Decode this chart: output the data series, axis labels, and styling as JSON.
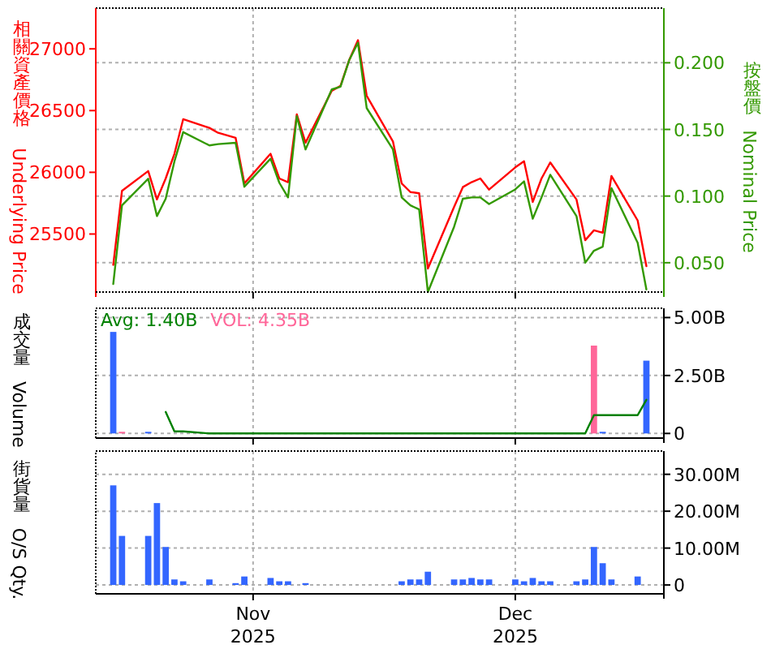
{
  "chart_data": [
    {
      "type": "line",
      "ylabel": "相關資產價格 Underlying Price",
      "y2label": "按盤價Nominal Price",
      "x": [
        "2025-10-16",
        "2025-10-17",
        "2025-10-20",
        "2025-10-21",
        "2025-10-22",
        "2025-10-23",
        "2025-10-24",
        "2025-10-27",
        "2025-10-28",
        "2025-10-30",
        "2025-10-31",
        "2025-11-03",
        "2025-11-04",
        "2025-11-05",
        "2025-11-06",
        "2025-11-07",
        "2025-11-10",
        "2025-11-11",
        "2025-11-12",
        "2025-11-13",
        "2025-11-14",
        "2025-11-17",
        "2025-11-18",
        "2025-11-19",
        "2025-11-20",
        "2025-11-21",
        "2025-11-24",
        "2025-11-25",
        "2025-11-26",
        "2025-11-27",
        "2025-11-28",
        "2025-12-01",
        "2025-12-02",
        "2025-12-03",
        "2025-12-04",
        "2025-12-05",
        "2025-12-08",
        "2025-12-09",
        "2025-12-10",
        "2025-12-11",
        "2025-12-12",
        "2025-12-15",
        "2025-12-16"
      ],
      "series": [
        {
          "color": "#ff0000",
          "axis": "y",
          "values": [
            25250,
            25850,
            26010,
            25780,
            25950,
            26150,
            26430,
            26360,
            26320,
            26280,
            25910,
            26150,
            25950,
            25920,
            26470,
            26240,
            26660,
            26700,
            26910,
            27070,
            26620,
            26250,
            25910,
            25840,
            25830,
            25220,
            25720,
            25880,
            25920,
            25950,
            25860,
            26040,
            26090,
            25760,
            25950,
            26080,
            25780,
            25450,
            25530,
            25510,
            25970,
            25610,
            25240
          ]
        },
        {
          "color": "#339900",
          "axis": "y2",
          "values": [
            0.034,
            0.093,
            0.113,
            0.085,
            0.098,
            0.126,
            0.148,
            0.138,
            0.139,
            0.14,
            0.107,
            0.128,
            0.11,
            0.099,
            0.16,
            0.135,
            0.18,
            0.182,
            0.202,
            0.215,
            0.166,
            0.135,
            0.099,
            0.093,
            0.09,
            0.028,
            0.077,
            0.098,
            0.099,
            0.099,
            0.094,
            0.105,
            0.111,
            0.083,
            0.099,
            0.116,
            0.085,
            0.05,
            0.059,
            0.062,
            0.106,
            0.065,
            0.03
          ]
        }
      ],
      "xlim": [
        "2025-10-14",
        "2025-12-18"
      ],
      "xticks": [
        {
          "value": "2025-11-01",
          "label": null
        },
        {
          "value": "2025-12-01",
          "label": null
        }
      ],
      "ylim": [
        25030,
        27330
      ],
      "yticks": [
        25500,
        26000,
        26500,
        27000
      ],
      "y2lim": [
        0.028,
        0.241
      ],
      "y2ticks": [
        {
          "value": 0.05,
          "label": "0.050"
        },
        {
          "value": 0.1,
          "label": "0.100"
        },
        {
          "value": 0.15,
          "label": "0.150"
        },
        {
          "value": 0.2,
          "label": "0.200"
        }
      ],
      "grid": true,
      "tick_labels": "y"
    },
    {
      "type": "bar",
      "ylabel": "成交量Volume",
      "annotations": [
        "Avg: 1.40B",
        "VOL: 4.35B"
      ],
      "series": [
        {
          "axis": "y2",
          "x": [
            "2025-10-16",
            "2025-10-17",
            "2025-10-20",
            "2025-12-10",
            "2025-12-11",
            "2025-12-16"
          ],
          "colors": [
            "#3366ff",
            "#ff6699",
            "#3366ff",
            "#ff6699",
            "#3366ff",
            "#3366ff"
          ],
          "values": [
            4.38,
            0.07,
            0.07,
            3.79,
            0.07,
            3.14
          ]
        },
        {
          "type": "line",
          "color": "#008000",
          "axis": "y2",
          "x": [
            "2025-10-22",
            "2025-10-23",
            "2025-10-24",
            "2025-10-27",
            "2025-10-28",
            "2025-10-30",
            "2025-10-31",
            "2025-11-03",
            "2025-11-04",
            "2025-11-05",
            "2025-11-06",
            "2025-11-07",
            "2025-11-10",
            "2025-11-11",
            "2025-11-12",
            "2025-11-13",
            "2025-11-14",
            "2025-11-17",
            "2025-11-18",
            "2025-11-19",
            "2025-11-20",
            "2025-11-21",
            "2025-11-24",
            "2025-11-25",
            "2025-11-26",
            "2025-11-27",
            "2025-11-28",
            "2025-12-01",
            "2025-12-02",
            "2025-12-03",
            "2025-12-04",
            "2025-12-05",
            "2025-12-08",
            "2025-12-09",
            "2025-12-10",
            "2025-12-11",
            "2025-12-12",
            "2025-12-15",
            "2025-12-16"
          ],
          "values": [
            0.93,
            0.09,
            0.09,
            0,
            0,
            0,
            0,
            0,
            0,
            0,
            0,
            0,
            0,
            0,
            0,
            0,
            0,
            0,
            0,
            0,
            0,
            0,
            0,
            0,
            0,
            0,
            0,
            0,
            0,
            0,
            0,
            0,
            0,
            0,
            0.79,
            0.79,
            0.79,
            0.79,
            1.45
          ]
        }
      ],
      "xlim": [
        "2025-10-14",
        "2025-12-18"
      ],
      "xticks": [
        {
          "value": "2025-11-01",
          "label": null
        },
        {
          "value": "2025-12-01",
          "label": null
        }
      ],
      "y2lim": [
        -0.2,
        5.4
      ],
      "y2ticks": [
        0,
        {
          "value": 2.5,
          "label": "2.50B"
        },
        {
          "value": 5,
          "label": "5.00B"
        }
      ],
      "grid": true,
      "tick_labels": "y"
    },
    {
      "type": "bar",
      "ylabel": "街貨量O/S Qty.",
      "series": [
        {
          "axis": "y2",
          "color": "#3366ff",
          "x": [
            "2025-10-16",
            "2025-10-17",
            "2025-10-20",
            "2025-10-21",
            "2025-10-22",
            "2025-10-23",
            "2025-10-24",
            "2025-10-27",
            "2025-10-30",
            "2025-10-31",
            "2025-11-03",
            "2025-11-04",
            "2025-11-05",
            "2025-11-07",
            "2025-11-18",
            "2025-11-19",
            "2025-11-20",
            "2025-11-21",
            "2025-11-24",
            "2025-11-25",
            "2025-11-26",
            "2025-11-27",
            "2025-11-28",
            "2025-12-01",
            "2025-12-02",
            "2025-12-03",
            "2025-12-04",
            "2025-12-05",
            "2025-12-08",
            "2025-12-09",
            "2025-12-10",
            "2025-12-11",
            "2025-12-12",
            "2025-12-15"
          ],
          "values": [
            27.0,
            13.3,
            13.3,
            22.2,
            10.3,
            1.5,
            1.0,
            1.5,
            0.5,
            2.3,
            1.9,
            1.0,
            1.0,
            0.5,
            1.0,
            1.5,
            1.5,
            3.6,
            1.5,
            1.5,
            1.9,
            1.5,
            1.5,
            1.5,
            1.0,
            1.9,
            1.0,
            1.0,
            1.0,
            1.5,
            10.3,
            5.9,
            1.5,
            2.3
          ]
        }
      ],
      "xlim": [
        "2025-10-14",
        "2025-12-18"
      ],
      "xticks": [
        {
          "value": "2025-11-01",
          "label": "Nov\n2025"
        },
        {
          "value": "2025-12-01",
          "label": "Dec\n2025"
        }
      ],
      "y2lim": [
        -2.4,
        36.3
      ],
      "y2ticks": [
        0,
        {
          "value": 10,
          "label": "10.00M"
        },
        {
          "value": 20,
          "label": "20.00M"
        },
        {
          "value": 30,
          "label": "30.00M"
        }
      ],
      "grid": true
    }
  ]
}
